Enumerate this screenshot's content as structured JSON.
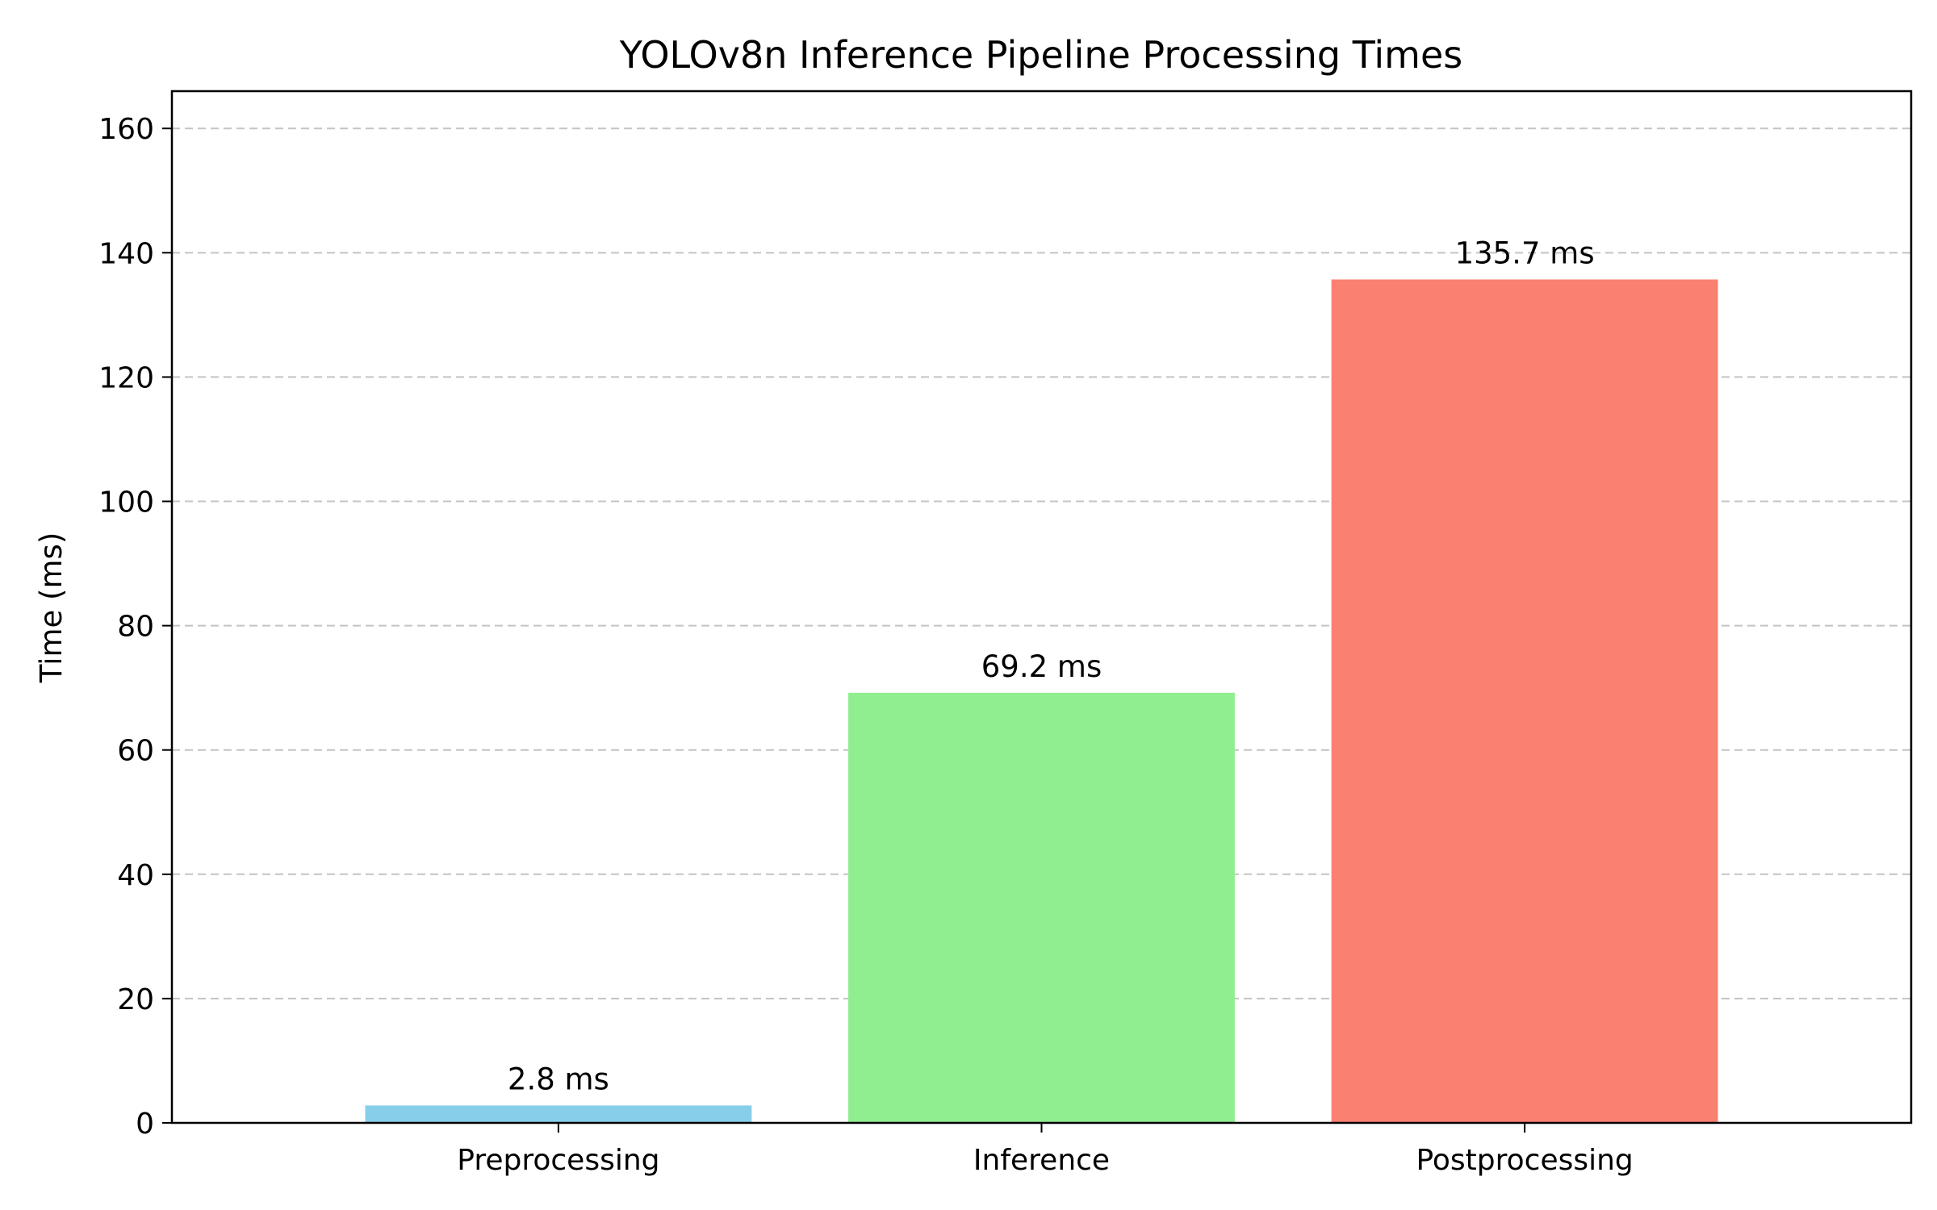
{
  "chart_data": {
    "type": "bar",
    "title": "YOLOv8n Inference Pipeline Processing Times",
    "xlabel": "",
    "ylabel": "Time (ms)",
    "categories": [
      "Preprocessing",
      "Inference",
      "Postprocessing"
    ],
    "values": [
      2.8,
      69.2,
      135.7
    ],
    "value_labels": [
      "2.8 ms",
      "69.2 ms",
      "135.7 ms"
    ],
    "colors": [
      "#87ceeb",
      "#90ee90",
      "#fa8072"
    ],
    "ylim": [
      0,
      166
    ],
    "yticks": [
      0,
      20,
      40,
      60,
      80,
      100,
      120,
      140,
      160
    ],
    "grid": "y-axis dashed",
    "legend": "none"
  }
}
